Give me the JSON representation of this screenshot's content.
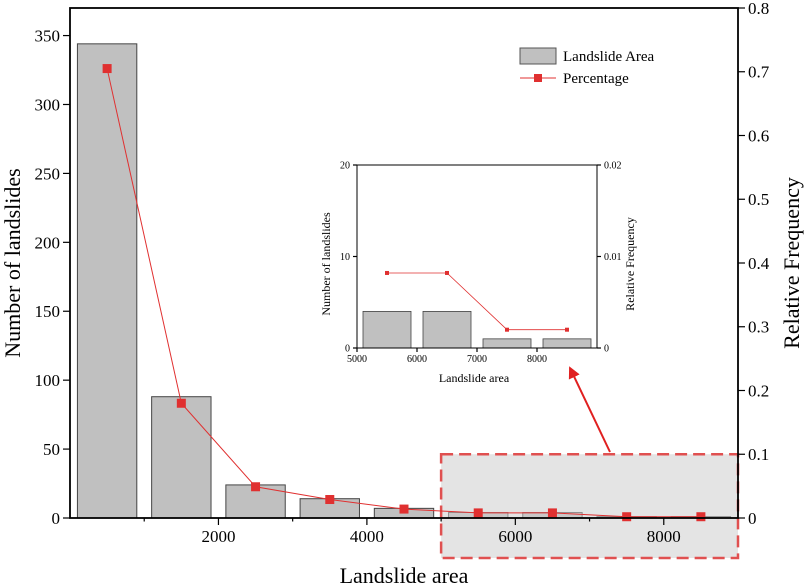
{
  "chart_data": [
    {
      "type": "bar",
      "xlabel": "Landslide area",
      "ylabel": "Number of landslides",
      "y2label": "Relative Frequency",
      "x_ticks": [
        2000,
        4000,
        6000,
        8000
      ],
      "y_ticks": [
        0,
        50,
        100,
        150,
        200,
        250,
        300,
        350
      ],
      "y2_ticks": [
        0,
        0.1,
        0.2,
        0.3,
        0.4,
        0.5,
        0.6,
        0.7,
        0.8
      ],
      "xlim": [
        0,
        9000
      ],
      "ylim": [
        0,
        370
      ],
      "y2lim": [
        0,
        0.8
      ],
      "legend_position": "top-right",
      "series": [
        {
          "name": "Landslide Area",
          "kind": "bar",
          "axis": "left",
          "color": "#c0c0c0",
          "x": [
            500,
            1500,
            2500,
            3500,
            4500,
            5500,
            6500,
            7500,
            8500
          ],
          "values": [
            344,
            88,
            24,
            14,
            7,
            4,
            4,
            1,
            1
          ]
        },
        {
          "name": "Percentage",
          "kind": "line",
          "axis": "right",
          "color": "#e03030",
          "x": [
            500,
            1500,
            2500,
            3500,
            4500,
            5500,
            6500,
            7500,
            8500
          ],
          "values": [
            0.705,
            0.18,
            0.049,
            0.029,
            0.014,
            0.008,
            0.008,
            0.002,
            0.002
          ]
        }
      ],
      "highlight_region": {
        "x": [
          5000,
          9000
        ],
        "y2": [
          0,
          0.1
        ],
        "color": "#e05050"
      }
    },
    {
      "type": "bar",
      "inset": true,
      "xlabel": "Landslide area",
      "ylabel": "Number of landslides",
      "y2label": "Relative Frequency",
      "x_ticks": [
        5000,
        6000,
        7000,
        8000
      ],
      "y_ticks": [
        0,
        10,
        20
      ],
      "y2_ticks": [
        "0",
        "0.01",
        "0.02"
      ],
      "xlim": [
        5000,
        9000
      ],
      "ylim": [
        0,
        20
      ],
      "y2lim": [
        0,
        0.02
      ],
      "series": [
        {
          "kind": "bar",
          "axis": "left",
          "color": "#c0c0c0",
          "x": [
            5500,
            6500,
            7500,
            8500
          ],
          "values": [
            4,
            4,
            1,
            1
          ]
        },
        {
          "kind": "line",
          "axis": "right",
          "color": "#e03030",
          "x": [
            5500,
            6500,
            7500,
            8500
          ],
          "values": [
            0.0082,
            0.0082,
            0.002,
            0.002
          ]
        }
      ]
    }
  ]
}
